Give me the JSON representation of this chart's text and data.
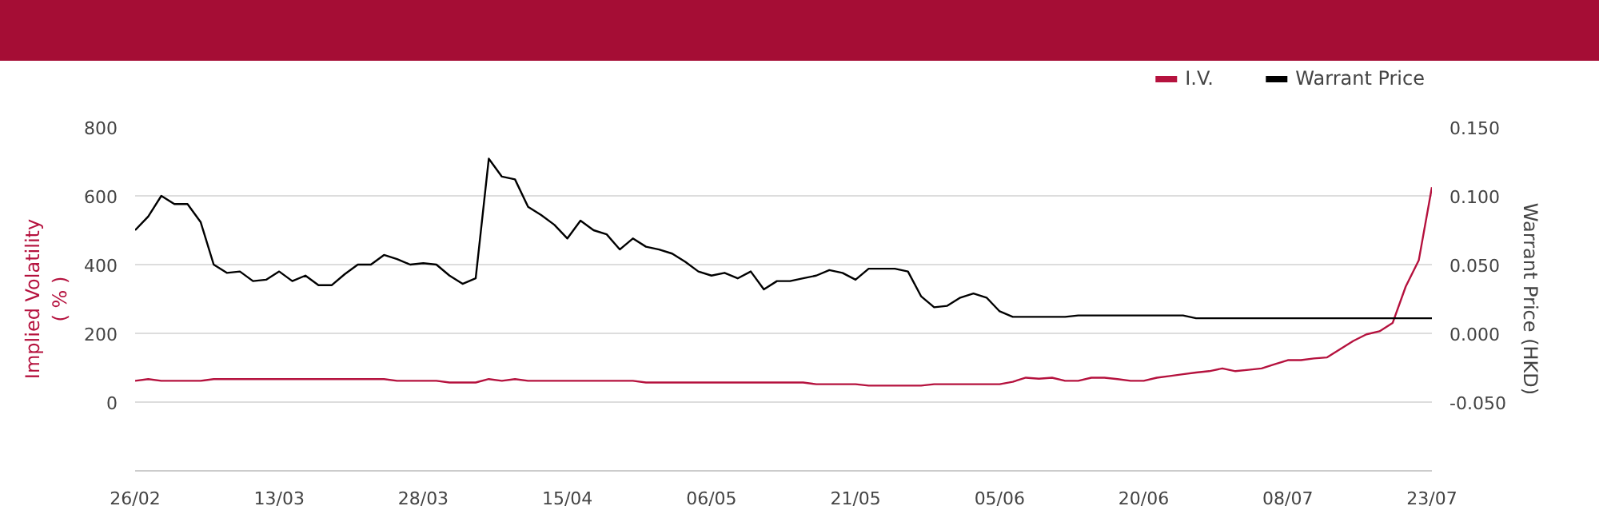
{
  "chart_data": {
    "type": "line",
    "categories": [
      "26/02",
      null,
      null,
      null,
      null,
      null,
      null,
      null,
      null,
      null,
      null,
      "13/03",
      null,
      null,
      null,
      null,
      null,
      null,
      null,
      null,
      null,
      null,
      "28/03",
      null,
      null,
      null,
      null,
      null,
      null,
      null,
      null,
      null,
      null,
      "15/04",
      null,
      null,
      null,
      null,
      null,
      null,
      null,
      null,
      null,
      null,
      "06/05",
      null,
      null,
      null,
      null,
      null,
      null,
      null,
      null,
      null,
      null,
      "21/05",
      null,
      null,
      null,
      null,
      null,
      null,
      null,
      null,
      null,
      null,
      "05/06",
      null,
      null,
      null,
      null,
      null,
      null,
      null,
      null,
      null,
      null,
      "20/06",
      null,
      null,
      null,
      null,
      null,
      null,
      null,
      null,
      null,
      null,
      "08/07",
      null,
      null,
      null,
      null,
      null,
      null,
      null,
      null,
      null,
      null,
      "23/07"
    ],
    "ylabel": "Implied Volatility\n( % )",
    "y2label": "Warrant Price (HKD)",
    "ylim": [
      -200,
      800
    ],
    "yticks": [
      0,
      200,
      400,
      600,
      800
    ],
    "y2lim": [
      -0.1,
      0.15
    ],
    "y2ticks": [
      {
        "value": -0.05,
        "label": "-0.050"
      },
      {
        "value": 0,
        "label": "0.000"
      },
      {
        "value": 0.05,
        "label": "0.050"
      },
      {
        "value": 0.1,
        "label": "0.100"
      },
      {
        "value": 0.15,
        "label": "0.150"
      }
    ],
    "grid": "y",
    "legend": "top right",
    "marker": "none",
    "line_style": "solid",
    "series": [
      {
        "name": "I.V.",
        "color": "#b5123e",
        "values": [
          62,
          67,
          62,
          62,
          62,
          62,
          67,
          67,
          67,
          67,
          67,
          67,
          67,
          67,
          67,
          67,
          67,
          67,
          67,
          67,
          62,
          62,
          62,
          62,
          57,
          57,
          57,
          67,
          62,
          67,
          62,
          62,
          62,
          62,
          62,
          62,
          62,
          62,
          62,
          57,
          57,
          57,
          57,
          57,
          57,
          57,
          57,
          57,
          57,
          57,
          57,
          57,
          52,
          52,
          52,
          52,
          48,
          48,
          48,
          48,
          48,
          52,
          52,
          52,
          52,
          52,
          52,
          59,
          71,
          68,
          71,
          62,
          62,
          71,
          71,
          67,
          62,
          62,
          71,
          76,
          81,
          86,
          90,
          98,
          90,
          94,
          98,
          110,
          122,
          122,
          127,
          130,
          154,
          178,
          197,
          206,
          230,
          336,
          413,
          625
        ]
      },
      {
        "name": "Warrant Price",
        "color": "#000000",
        "axis": "y2",
        "values": [
          0.075,
          0.085,
          0.1,
          0.094,
          0.094,
          0.081,
          0.05,
          0.044,
          0.045,
          0.038,
          0.039,
          0.045,
          0.038,
          0.042,
          0.035,
          0.035,
          0.043,
          0.05,
          0.05,
          0.057,
          0.054,
          0.05,
          0.051,
          0.05,
          0.042,
          0.036,
          0.04,
          0.127,
          0.114,
          0.112,
          0.092,
          0.086,
          0.079,
          0.069,
          0.082,
          0.075,
          0.072,
          0.061,
          0.069,
          0.063,
          0.061,
          0.058,
          0.052,
          0.045,
          0.042,
          0.044,
          0.04,
          0.045,
          0.032,
          0.038,
          0.038,
          0.04,
          0.042,
          0.046,
          0.044,
          0.039,
          0.047,
          0.047,
          0.047,
          0.045,
          0.027,
          0.019,
          0.02,
          0.026,
          0.029,
          0.026,
          0.016,
          0.012,
          0.012,
          0.012,
          0.012,
          0.012,
          0.013,
          0.013,
          0.013,
          0.013,
          0.013,
          0.013,
          0.013,
          0.013,
          0.013,
          0.011,
          0.011,
          0.011,
          0.011,
          0.011,
          0.011,
          0.011,
          0.011,
          0.011,
          0.011,
          0.011,
          0.011,
          0.011,
          0.011,
          0.011,
          0.011,
          0.011,
          0.011,
          0.011
        ]
      }
    ]
  }
}
